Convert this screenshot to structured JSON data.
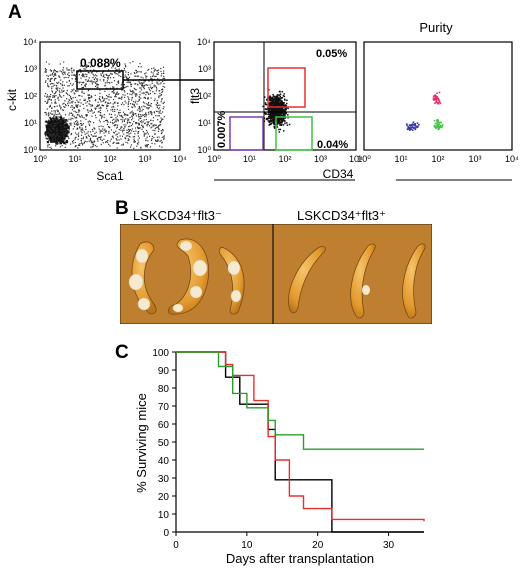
{
  "panels": {
    "a": "A",
    "b": "B",
    "c": "C"
  },
  "flow": {
    "ticks": [
      "10⁰",
      "10¹",
      "10²",
      "10³",
      "10⁴"
    ],
    "plot1": {
      "ylabel": "c-kit",
      "xlabel": "Sca1",
      "gate_label": "0.088%"
    },
    "plot2": {
      "ylabel": "flt3",
      "xlabel": "CD34",
      "gate_top_right": "0.05%",
      "gate_bottom_left": "0.007%",
      "gate_bottom_right": "0.04%"
    },
    "plot3": {
      "title": "Purity"
    }
  },
  "spleens": {
    "left_label": "LSKCD34⁺flt3⁻",
    "right_label": "LSKCD34⁺flt3⁺"
  },
  "chart_data": {
    "type": "line",
    "xlabel": "Days after transplantation",
    "ylabel": "% Surviving mice",
    "xlim": [
      0,
      35
    ],
    "ylim": [
      0,
      100
    ],
    "xticks": [
      0,
      10,
      20,
      30
    ],
    "yticks": [
      0,
      10,
      20,
      30,
      40,
      50,
      60,
      70,
      80,
      90,
      100
    ],
    "series": [
      {
        "color": "#000000",
        "step_points": [
          [
            0,
            100
          ],
          [
            7,
            100
          ],
          [
            7,
            86
          ],
          [
            9,
            86
          ],
          [
            9,
            71
          ],
          [
            13,
            71
          ],
          [
            13,
            57
          ],
          [
            14,
            57
          ],
          [
            14,
            29
          ],
          [
            22,
            29
          ],
          [
            22,
            0
          ],
          [
            35,
            0
          ]
        ]
      },
      {
        "color": "#e53030",
        "step_points": [
          [
            0,
            100
          ],
          [
            7,
            100
          ],
          [
            7,
            93
          ],
          [
            8,
            93
          ],
          [
            8,
            87
          ],
          [
            11,
            87
          ],
          [
            11,
            73
          ],
          [
            13,
            73
          ],
          [
            13,
            53
          ],
          [
            14,
            53
          ],
          [
            14,
            40
          ],
          [
            16,
            40
          ],
          [
            16,
            20
          ],
          [
            18,
            20
          ],
          [
            18,
            13
          ],
          [
            22,
            13
          ],
          [
            22,
            7
          ],
          [
            35,
            7
          ],
          [
            35,
            6
          ]
        ]
      },
      {
        "color": "#2ba02b",
        "step_points": [
          [
            0,
            100
          ],
          [
            6,
            100
          ],
          [
            6,
            92
          ],
          [
            8,
            92
          ],
          [
            8,
            77
          ],
          [
            10,
            77
          ],
          [
            10,
            69
          ],
          [
            13,
            69
          ],
          [
            13,
            62
          ],
          [
            14,
            62
          ],
          [
            14,
            54
          ],
          [
            18,
            54
          ],
          [
            18,
            46
          ],
          [
            35,
            46
          ]
        ]
      }
    ]
  }
}
